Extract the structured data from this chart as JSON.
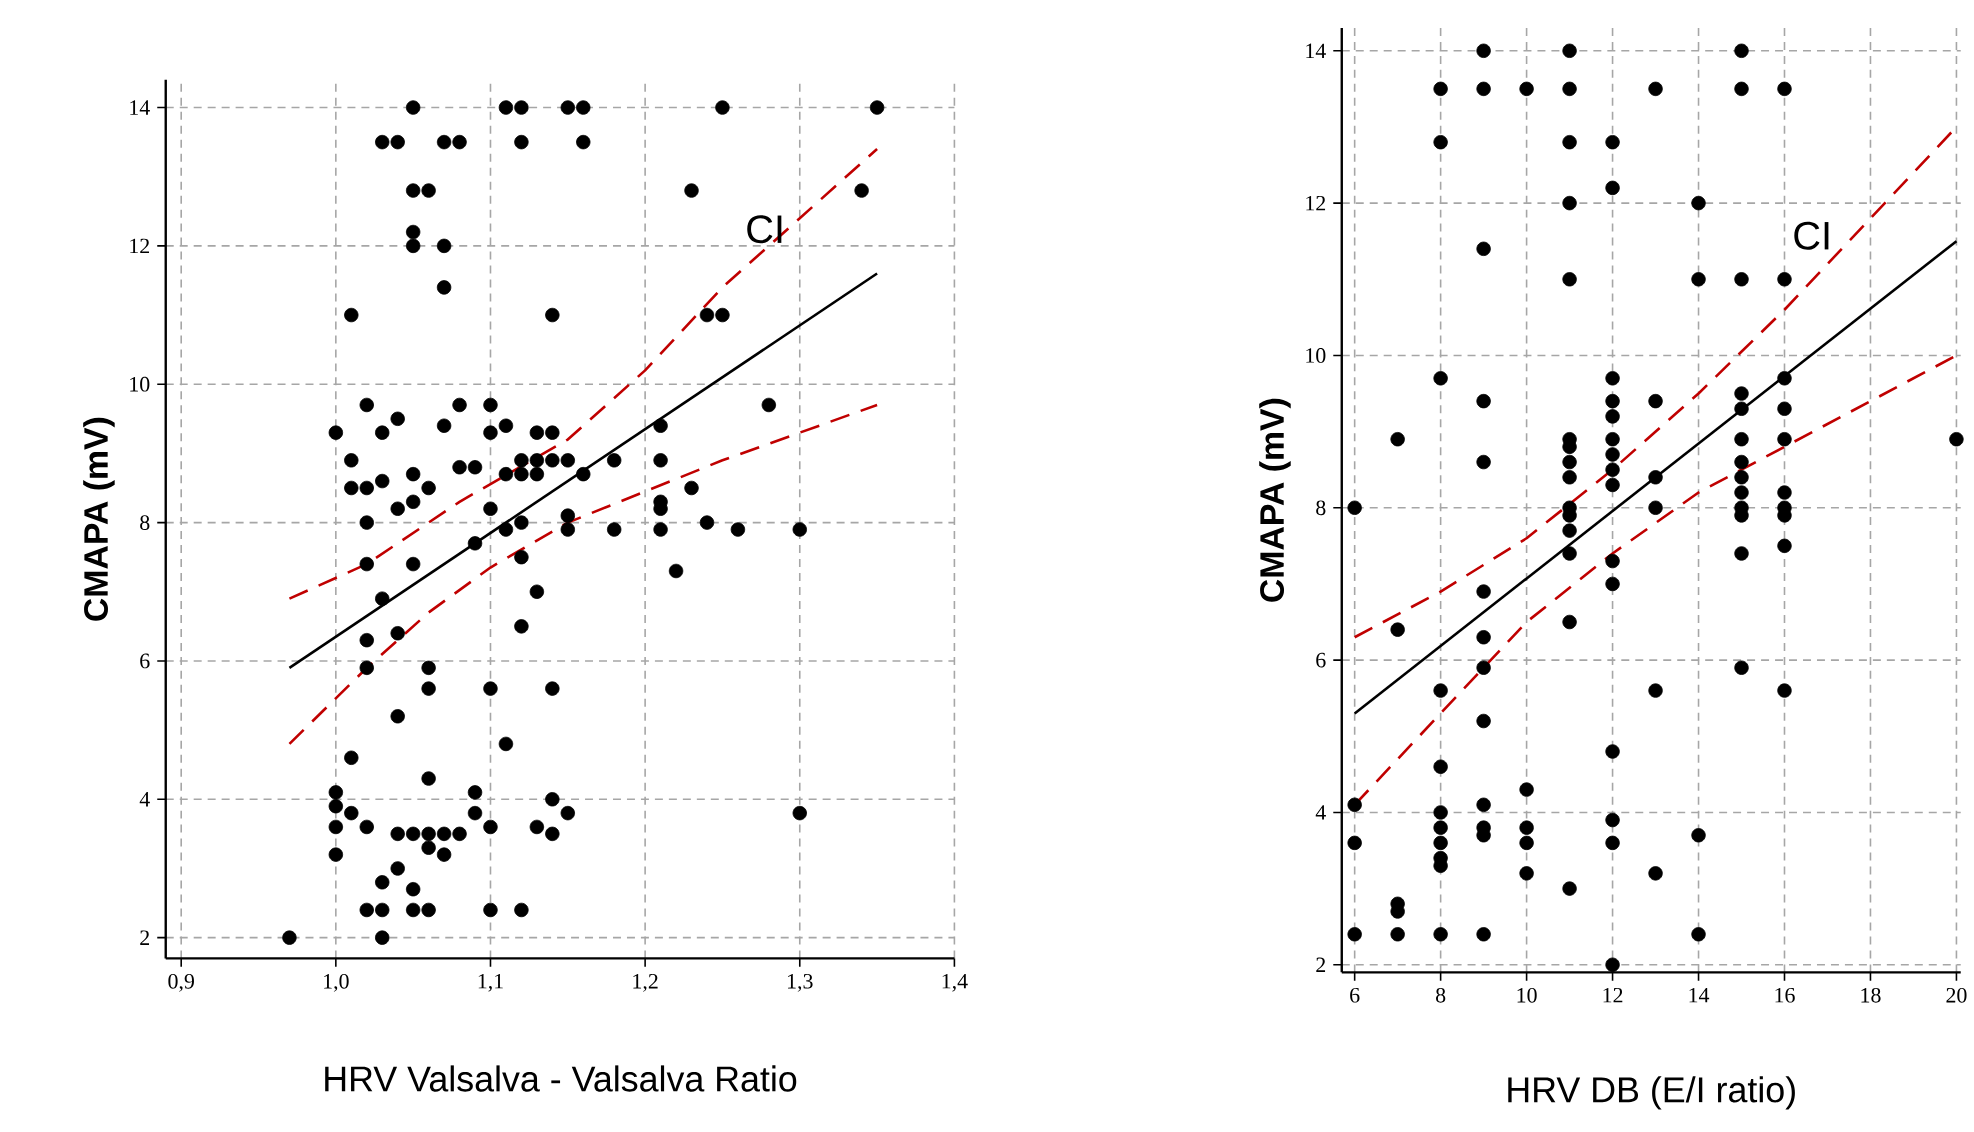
{
  "chart_data": [
    {
      "type": "scatter",
      "xlabel": "HRV Valsalva - Valsalva Ratio",
      "ylabel": "CMAPA (mV)",
      "xlim": [
        0.89,
        1.4
      ],
      "ylim": [
        1.7,
        14.4
      ],
      "xticks": [
        {
          "value": 0.9,
          "label": "0,9"
        },
        {
          "value": 1.0,
          "label": "1,0"
        },
        {
          "value": 1.1,
          "label": "1,1"
        },
        {
          "value": 1.2,
          "label": "1,2"
        },
        {
          "value": 1.3,
          "label": "1,3"
        },
        {
          "value": 1.4,
          "label": "1,4"
        }
      ],
      "yticks": [
        2,
        4,
        6,
        8,
        10,
        12,
        14
      ],
      "grid": true,
      "series": [
        {
          "color": "#000000",
          "marker": "circle",
          "x": [
            1.05,
            1.11,
            1.12,
            1.15,
            1.16,
            1.25,
            1.35,
            1.03,
            1.04,
            1.07,
            1.08,
            1.12,
            1.16,
            1.05,
            1.06,
            1.23,
            1.34,
            1.05,
            1.05,
            1.07,
            1.07,
            1.01,
            1.14,
            1.24,
            1.25,
            1.02,
            1.08,
            1.1,
            1.28,
            1.0,
            1.03,
            1.04,
            1.07,
            1.1,
            1.11,
            1.13,
            1.14,
            1.21,
            1.01,
            1.12,
            1.13,
            1.14,
            1.15,
            1.18,
            1.21,
            1.01,
            1.02,
            1.03,
            1.05,
            1.06,
            1.08,
            1.09,
            1.11,
            1.12,
            1.13,
            1.16,
            1.23,
            1.21,
            1.02,
            1.04,
            1.05,
            1.1,
            1.11,
            1.12,
            1.15,
            1.15,
            1.18,
            1.21,
            1.21,
            1.24,
            1.26,
            1.3,
            1.22,
            1.02,
            1.05,
            1.09,
            1.12,
            1.13,
            1.03,
            1.12,
            1.02,
            1.04,
            1.02,
            1.06,
            1.06,
            1.1,
            1.14,
            1.04,
            1.11,
            1.01,
            1.06,
            1.0,
            1.0,
            1.0,
            1.01,
            1.02,
            1.04,
            1.05,
            1.06,
            1.07,
            1.08,
            1.09,
            1.09,
            1.1,
            1.13,
            1.14,
            1.14,
            1.15,
            1.3,
            1.0,
            1.06,
            1.07,
            1.04,
            1.03,
            1.05,
            1.02,
            1.03,
            1.05,
            1.06,
            1.1,
            1.12,
            1.03,
            0.97
          ],
          "values": [
            14,
            14,
            14,
            14,
            14,
            14,
            14,
            13.5,
            13.5,
            13.5,
            13.5,
            13.5,
            13.5,
            12.8,
            12.8,
            12.8,
            12.8,
            12.2,
            12.0,
            12.0,
            11.4,
            11.0,
            11.0,
            11.0,
            11.0,
            9.7,
            9.7,
            9.7,
            9.7,
            9.3,
            9.3,
            9.5,
            9.4,
            9.3,
            9.4,
            9.3,
            9.3,
            9.4,
            8.9,
            8.9,
            8.9,
            8.9,
            8.9,
            8.9,
            8.9,
            8.5,
            8.5,
            8.6,
            8.7,
            8.5,
            8.8,
            8.8,
            8.7,
            8.7,
            8.7,
            8.7,
            8.5,
            8.3,
            8.0,
            8.2,
            8.3,
            8.2,
            7.9,
            8.0,
            8.1,
            7.9,
            7.9,
            8.2,
            7.9,
            8.0,
            7.9,
            7.9,
            7.3,
            7.4,
            7.4,
            7.7,
            7.5,
            7.0,
            6.9,
            6.5,
            6.3,
            6.4,
            5.9,
            5.9,
            5.6,
            5.6,
            5.6,
            5.2,
            4.8,
            4.6,
            4.3,
            4.1,
            3.9,
            3.6,
            3.8,
            3.6,
            3.5,
            3.5,
            3.5,
            3.5,
            3.5,
            4.1,
            3.8,
            3.6,
            3.6,
            4.0,
            3.5,
            3.8,
            3.8,
            3.2,
            3.3,
            3.2,
            3.0,
            2.8,
            2.7,
            2.4,
            2.4,
            2.4,
            2.4,
            2.4,
            2.4,
            2.0,
            2.0
          ]
        },
        {
          "type": "line",
          "color": "#000000",
          "line_style": "solid",
          "marker": "none",
          "x": [
            0.97,
            1.35
          ],
          "values": [
            5.9,
            11.6
          ]
        },
        {
          "type": "line",
          "color": "#c00000",
          "line_style": "dashed",
          "marker": "none",
          "x": [
            0.97,
            1.02,
            1.08,
            1.15,
            1.2,
            1.25,
            1.35
          ],
          "values": [
            6.9,
            7.4,
            8.3,
            9.2,
            10.2,
            11.4,
            13.4
          ]
        },
        {
          "type": "line",
          "color": "#c00000",
          "line_style": "dashed",
          "marker": "none",
          "x": [
            0.97,
            1.02,
            1.06,
            1.1,
            1.15,
            1.25,
            1.35
          ],
          "values": [
            4.8,
            5.9,
            6.7,
            7.35,
            8.0,
            8.9,
            9.7
          ]
        }
      ],
      "annotations": [
        "CI"
      ]
    },
    {
      "type": "scatter",
      "xlabel": "HRV DB (E/I ratio)",
      "ylabel": "CMAPA (mV)",
      "xlim": [
        5.7,
        20.1
      ],
      "ylim": [
        1.9,
        14.3
      ],
      "xticks": [
        6,
        8,
        10,
        12,
        14,
        16,
        18,
        20
      ],
      "yticks": [
        2,
        4,
        6,
        8,
        10,
        12,
        14
      ],
      "grid": true,
      "series": [
        {
          "color": "#000000",
          "marker": "circle",
          "x": [
            6,
            6,
            6,
            6,
            7,
            7,
            7,
            7,
            7,
            8,
            8,
            8,
            8,
            8,
            8,
            8,
            8,
            8,
            8,
            8,
            9,
            9,
            9,
            9,
            9,
            9,
            9,
            9,
            9,
            9,
            9,
            9,
            9,
            10,
            10,
            10,
            10,
            10,
            11,
            11,
            11,
            11,
            11,
            11,
            11,
            11,
            11,
            11,
            11,
            11,
            11,
            11,
            11,
            12,
            12,
            12,
            12,
            12,
            12,
            12,
            12,
            12,
            12,
            12,
            12,
            12,
            12,
            12,
            13,
            13,
            13,
            13,
            13,
            13,
            14,
            14,
            14,
            14,
            15,
            15,
            15,
            15,
            15,
            15,
            15,
            15,
            15,
            15,
            15,
            15,
            15,
            16,
            16,
            16,
            16,
            16,
            16,
            16,
            16,
            16,
            16,
            20
          ],
          "values": [
            8.0,
            4.1,
            3.6,
            2.4,
            8.9,
            6.4,
            2.8,
            2.7,
            2.4,
            13.5,
            12.8,
            9.7,
            5.6,
            4.6,
            4.0,
            3.8,
            3.6,
            3.4,
            3.3,
            2.4,
            14,
            13.5,
            11.4,
            9.4,
            8.6,
            6.9,
            6.3,
            5.9,
            5.2,
            4.1,
            3.8,
            3.7,
            2.4,
            13.5,
            4.3,
            3.8,
            3.6,
            3.2,
            14,
            13.5,
            12.8,
            12.0,
            11.0,
            8.9,
            8.8,
            8.6,
            8.4,
            8.0,
            7.9,
            7.7,
            7.4,
            6.5,
            3.0,
            12.8,
            12.2,
            9.7,
            9.4,
            9.2,
            8.9,
            8.7,
            8.5,
            8.3,
            7.3,
            7.0,
            4.8,
            3.9,
            3.6,
            2.0,
            13.5,
            9.4,
            8.4,
            8.0,
            5.6,
            3.2,
            12.0,
            11.0,
            3.7,
            2.4,
            14,
            13.5,
            11.0,
            9.5,
            9.3,
            8.9,
            8.6,
            8.4,
            8.2,
            8.0,
            7.9,
            7.4,
            5.9,
            13.5,
            11.0,
            9.7,
            9.3,
            8.9,
            8.2,
            8.0,
            7.9,
            7.5,
            5.6,
            8.9
          ]
        },
        {
          "type": "line",
          "color": "#000000",
          "line_style": "solid",
          "marker": "none",
          "x": [
            6,
            20
          ],
          "values": [
            5.3,
            11.5
          ]
        },
        {
          "type": "line",
          "color": "#c00000",
          "line_style": "dashed",
          "marker": "none",
          "x": [
            6,
            8,
            10,
            12,
            14,
            16,
            18,
            20
          ],
          "values": [
            6.3,
            6.9,
            7.6,
            8.5,
            9.5,
            10.6,
            11.8,
            13.0
          ]
        },
        {
          "type": "line",
          "color": "#c00000",
          "line_style": "dashed",
          "marker": "none",
          "x": [
            6,
            8,
            10,
            12,
            14,
            16,
            18,
            20
          ],
          "values": [
            4.1,
            5.3,
            6.5,
            7.4,
            8.2,
            8.8,
            9.4,
            10.0
          ]
        }
      ],
      "annotations": [
        "CI"
      ]
    }
  ]
}
